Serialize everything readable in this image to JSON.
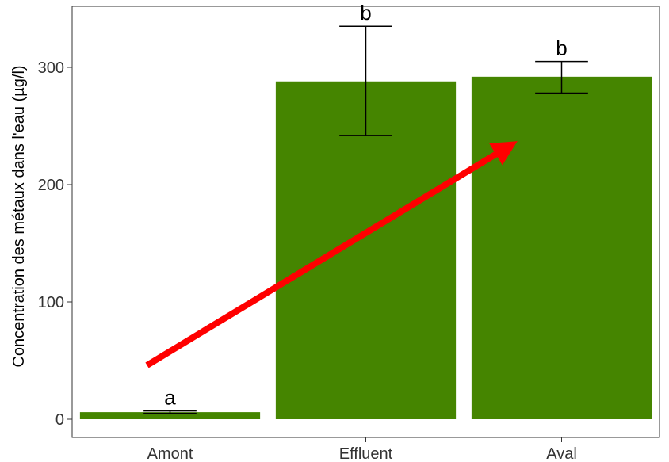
{
  "chart_data": {
    "type": "bar",
    "categories": [
      "Amont",
      "Effluent",
      "Aval"
    ],
    "values": [
      6,
      288,
      292
    ],
    "error_low": [
      5,
      242,
      278
    ],
    "error_high": [
      7,
      335,
      305
    ],
    "significance_labels": [
      "a",
      "b",
      "b"
    ],
    "title": "",
    "xlabel": "",
    "ylabel": "Concentration des métaux dans l'eau (µg/l)",
    "ylim": [
      -15,
      350
    ],
    "yticks": [
      0,
      100,
      200,
      300
    ],
    "grid": false,
    "legend": "none",
    "annotation": {
      "type": "arrow",
      "from": {
        "category": "Amont",
        "value": 46
      },
      "to": {
        "category": "Aval",
        "value": 232
      },
      "color": "#ff0000"
    },
    "bar_color": "#458500"
  }
}
